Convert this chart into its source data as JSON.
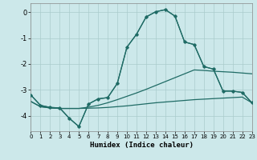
{
  "xlabel": "Humidex (Indice chaleur)",
  "background_color": "#cce8ea",
  "grid_color": "#aacccc",
  "line_color": "#1f6b65",
  "xlim": [
    0,
    23
  ],
  "ylim": [
    -4.6,
    0.35
  ],
  "yticks": [
    0,
    -1,
    -2,
    -3,
    -4
  ],
  "xticks": [
    0,
    1,
    2,
    3,
    4,
    5,
    6,
    7,
    8,
    9,
    10,
    11,
    12,
    13,
    14,
    15,
    16,
    17,
    18,
    19,
    20,
    21,
    22,
    23
  ],
  "series": [
    {
      "x": [
        0,
        1,
        2,
        3,
        4,
        5,
        6,
        7,
        8,
        9,
        10,
        11,
        12,
        13,
        14,
        15,
        16,
        17,
        18,
        19,
        20,
        21,
        22,
        23
      ],
      "y": [
        -3.45,
        -3.65,
        -3.7,
        -3.72,
        -3.72,
        -3.72,
        -3.71,
        -3.7,
        -3.68,
        -3.65,
        -3.62,
        -3.58,
        -3.54,
        -3.5,
        -3.47,
        -3.44,
        -3.41,
        -3.38,
        -3.36,
        -3.34,
        -3.32,
        -3.3,
        -3.28,
        -3.5
      ],
      "marker": false,
      "lw": 0.9
    },
    {
      "x": [
        0,
        1,
        2,
        3,
        4,
        5,
        6,
        7,
        8,
        9,
        10,
        11,
        12,
        13,
        14,
        15,
        16,
        17,
        18,
        19,
        20,
        21,
        22,
        23
      ],
      "y": [
        -3.45,
        -3.65,
        -3.7,
        -3.72,
        -3.72,
        -3.72,
        -3.67,
        -3.6,
        -3.5,
        -3.38,
        -3.25,
        -3.12,
        -2.98,
        -2.83,
        -2.68,
        -2.53,
        -2.38,
        -2.23,
        -2.25,
        -2.28,
        -2.3,
        -2.32,
        -2.35,
        -2.38
      ],
      "marker": false,
      "lw": 0.9
    },
    {
      "x": [
        0,
        1,
        2,
        3,
        4,
        5,
        6,
        7,
        8,
        9,
        10,
        11,
        12,
        13,
        14,
        15,
        16,
        17,
        18,
        19,
        20,
        21,
        22,
        23
      ],
      "y": [
        -3.2,
        -3.6,
        -3.68,
        -3.7,
        -4.1,
        -4.42,
        -3.55,
        -3.35,
        -3.3,
        -2.75,
        -1.35,
        -0.85,
        -0.18,
        0.02,
        0.1,
        -0.15,
        -1.15,
        -1.25,
        -2.1,
        -2.2,
        -3.05,
        -3.05,
        -3.1,
        -3.5
      ],
      "marker": false,
      "lw": 0.9
    },
    {
      "x": [
        0,
        1,
        2,
        3,
        4,
        5,
        6,
        7,
        8,
        9,
        10,
        11,
        12,
        13,
        14,
        15,
        16,
        17,
        18,
        19,
        20,
        21,
        22,
        23
      ],
      "y": [
        -3.2,
        -3.6,
        -3.68,
        -3.7,
        -4.1,
        -4.42,
        -3.55,
        -3.35,
        -3.3,
        -2.75,
        -1.35,
        -0.85,
        -0.18,
        0.02,
        0.1,
        -0.15,
        -1.15,
        -1.25,
        -2.1,
        -2.2,
        -3.05,
        -3.05,
        -3.1,
        -3.5
      ],
      "marker": true,
      "lw": 0.9
    }
  ]
}
